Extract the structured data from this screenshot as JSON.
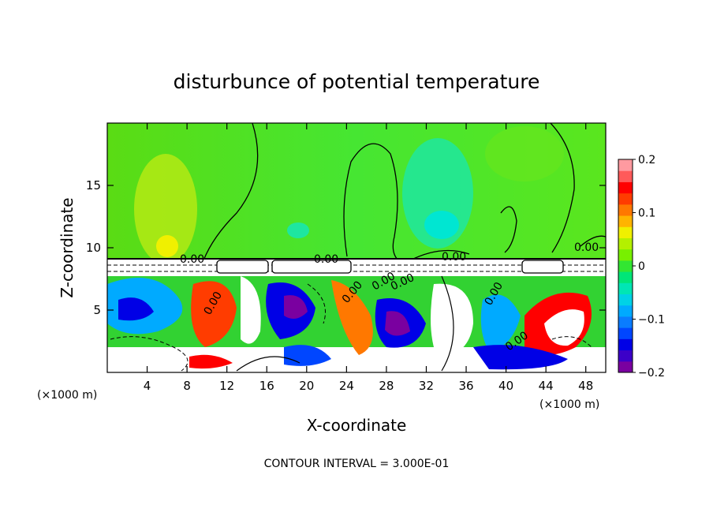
{
  "chart_data": {
    "type": "heatmap",
    "title": "disturbunce of potential temperature",
    "xlabel": "X-coordinate",
    "ylabel": "Z-coordinate",
    "x_unit": "(×1000 m)",
    "y_unit": "(×1000 m)",
    "xlim": [
      0,
      50
    ],
    "ylim": [
      0,
      20
    ],
    "x_ticks": [
      4,
      8,
      12,
      16,
      20,
      24,
      28,
      32,
      36,
      40,
      44,
      48
    ],
    "y_ticks": [
      5,
      10,
      15
    ],
    "colorbar": {
      "vmin": -0.2,
      "vmax": 0.2,
      "tick_values": [
        0.2,
        0.1,
        0,
        -0.1,
        -0.2
      ],
      "tick_labels": [
        "0.2",
        "0.1",
        "0",
        "−0.1",
        "−0.2"
      ],
      "colors": [
        "#7a00a0",
        "#3c00c8",
        "#0000e6",
        "#0046ff",
        "#0a7cff",
        "#00aaff",
        "#00d2e6",
        "#00e6b4",
        "#00e678",
        "#32e632",
        "#78f000",
        "#b4f000",
        "#f0f000",
        "#ffb400",
        "#ff7800",
        "#ff3c00",
        "#ff0000",
        "#ff5a5a",
        "#ff9aa0"
      ]
    },
    "contour_interval": "CONTOUR INTERVAL = 3.000E-01",
    "contour_labels": [
      "0.00",
      "0.00",
      "0.00",
      "0.00",
      "0.00",
      "0.00",
      "0.00",
      "0.00",
      "0.00",
      "0.00",
      "0.00",
      "0.00"
    ]
  }
}
